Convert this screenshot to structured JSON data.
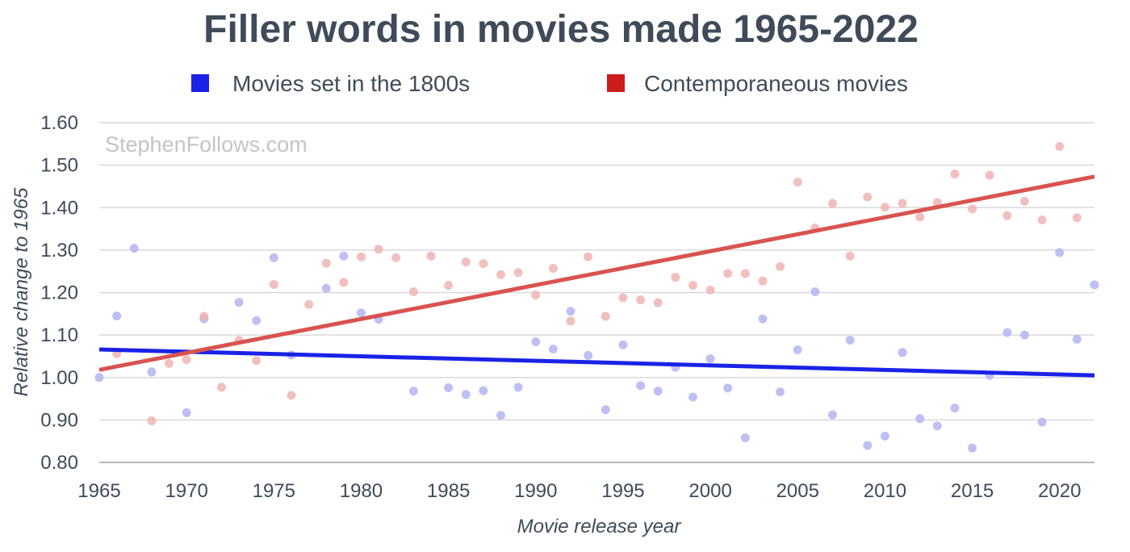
{
  "chart_data": {
    "type": "scatter",
    "title": "Filler words in movies made 1965-2022",
    "xlabel": "Movie release year",
    "ylabel": "Relative change to 1965",
    "watermark": "StephenFollows.com",
    "xlim": [
      1965,
      2022
    ],
    "ylim": [
      0.8,
      1.6
    ],
    "x_ticks": [
      1965,
      1970,
      1975,
      1980,
      1985,
      1990,
      1995,
      2000,
      2005,
      2010,
      2015,
      2020
    ],
    "y_ticks": [
      "0.80",
      "0.90",
      "1.00",
      "1.10",
      "1.20",
      "1.30",
      "1.40",
      "1.50",
      "1.60"
    ],
    "grid": true,
    "legend_position": "top",
    "series": [
      {
        "name": "Movies set in the 1800s",
        "color": "#1b22e6",
        "point_color": "#b3b5f2",
        "trend": [
          [
            1965,
            1.066
          ],
          [
            2022,
            1.005
          ]
        ],
        "points": [
          [
            1965,
            1.0
          ],
          [
            1966,
            1.145
          ],
          [
            1967,
            1.304
          ],
          [
            1968,
            1.013
          ],
          [
            1970,
            0.917
          ],
          [
            1971,
            1.138
          ],
          [
            1973,
            1.177
          ],
          [
            1974,
            1.134
          ],
          [
            1975,
            1.282
          ],
          [
            1976,
            1.053
          ],
          [
            1978,
            1.21
          ],
          [
            1979,
            1.286
          ],
          [
            1980,
            1.152
          ],
          [
            1981,
            1.137
          ],
          [
            1983,
            0.968
          ],
          [
            1985,
            0.976
          ],
          [
            1986,
            0.96
          ],
          [
            1987,
            0.969
          ],
          [
            1988,
            0.911
          ],
          [
            1989,
            0.977
          ],
          [
            1990,
            1.084
          ],
          [
            1991,
            1.067
          ],
          [
            1992,
            1.156
          ],
          [
            1993,
            1.052
          ],
          [
            1994,
            0.924
          ],
          [
            1995,
            1.077
          ],
          [
            1996,
            0.981
          ],
          [
            1997,
            0.968
          ],
          [
            1998,
            1.024
          ],
          [
            1999,
            0.954
          ],
          [
            2000,
            1.044
          ],
          [
            2001,
            0.975
          ],
          [
            2002,
            0.858
          ],
          [
            2003,
            1.138
          ],
          [
            2004,
            0.966
          ],
          [
            2005,
            1.065
          ],
          [
            2006,
            1.202
          ],
          [
            2007,
            0.912
          ],
          [
            2008,
            1.088
          ],
          [
            2009,
            0.84
          ],
          [
            2010,
            0.862
          ],
          [
            2011,
            1.059
          ],
          [
            2012,
            0.903
          ],
          [
            2013,
            0.886
          ],
          [
            2014,
            0.928
          ],
          [
            2015,
            0.834
          ],
          [
            2016,
            1.005
          ],
          [
            2017,
            1.106
          ],
          [
            2018,
            1.1
          ],
          [
            2019,
            0.895
          ],
          [
            2020,
            1.294
          ],
          [
            2021,
            1.09
          ],
          [
            2022,
            1.218
          ]
        ]
      },
      {
        "name": "Contemporaneous movies",
        "color": "#cc1c1c",
        "trend_color": "#d9534f",
        "point_color": "#f0b4b4",
        "trend": [
          [
            1965,
            1.018
          ],
          [
            2022,
            1.473
          ]
        ],
        "points": [
          [
            1966,
            1.056
          ],
          [
            1968,
            0.898
          ],
          [
            1969,
            1.033
          ],
          [
            1970,
            1.042
          ],
          [
            1971,
            1.144
          ],
          [
            1972,
            0.977
          ],
          [
            1973,
            1.088
          ],
          [
            1974,
            1.04
          ],
          [
            1975,
            1.219
          ],
          [
            1976,
            0.958
          ],
          [
            1977,
            1.172
          ],
          [
            1978,
            1.269
          ],
          [
            1979,
            1.224
          ],
          [
            1980,
            1.284
          ],
          [
            1981,
            1.302
          ],
          [
            1982,
            1.282
          ],
          [
            1983,
            1.202
          ],
          [
            1984,
            1.286
          ],
          [
            1985,
            1.217
          ],
          [
            1986,
            1.272
          ],
          [
            1987,
            1.268
          ],
          [
            1988,
            1.242
          ],
          [
            1989,
            1.247
          ],
          [
            1990,
            1.194
          ],
          [
            1991,
            1.257
          ],
          [
            1992,
            1.133
          ],
          [
            1993,
            1.284
          ],
          [
            1994,
            1.144
          ],
          [
            1995,
            1.188
          ],
          [
            1996,
            1.183
          ],
          [
            1997,
            1.176
          ],
          [
            1998,
            1.236
          ],
          [
            1999,
            1.217
          ],
          [
            2000,
            1.206
          ],
          [
            2001,
            1.245
          ],
          [
            2002,
            1.245
          ],
          [
            2003,
            1.227
          ],
          [
            2004,
            1.261
          ],
          [
            2005,
            1.46
          ],
          [
            2006,
            1.352
          ],
          [
            2007,
            1.41
          ],
          [
            2008,
            1.286
          ],
          [
            2009,
            1.425
          ],
          [
            2010,
            1.401
          ],
          [
            2011,
            1.41
          ],
          [
            2012,
            1.378
          ],
          [
            2013,
            1.412
          ],
          [
            2014,
            1.479
          ],
          [
            2015,
            1.397
          ],
          [
            2016,
            1.476
          ],
          [
            2017,
            1.381
          ],
          [
            2018,
            1.415
          ],
          [
            2019,
            1.371
          ],
          [
            2020,
            1.544
          ],
          [
            2021,
            1.376
          ]
        ]
      }
    ]
  }
}
